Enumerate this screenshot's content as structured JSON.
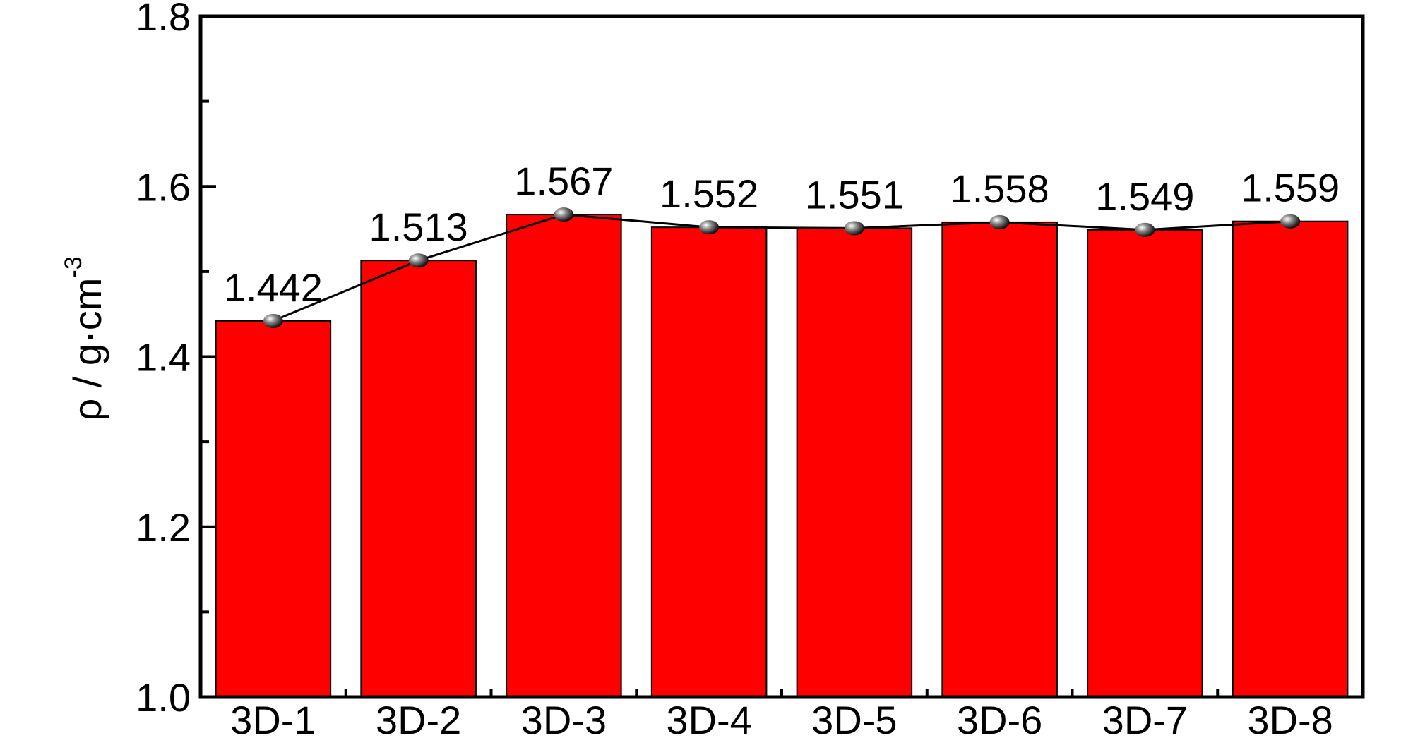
{
  "chart_data": {
    "type": "bar",
    "ylabel": "ρ / g·cm",
    "ylabel_superscript": "-3",
    "categories": [
      "3D-1",
      "3D-2",
      "3D-3",
      "3D-4",
      "3D-5",
      "3D-6",
      "3D-7",
      "3D-8"
    ],
    "values": [
      1.442,
      1.513,
      1.567,
      1.552,
      1.551,
      1.558,
      1.549,
      1.559
    ],
    "color": "#ff0000",
    "line_color": "#000000",
    "line": true,
    "ylim": [
      1.0,
      1.8
    ],
    "yticks": [
      {
        "value": 1.0,
        "label": "1.0"
      },
      1.2,
      1.4,
      1.6,
      1.8
    ],
    "minor_ticks": true,
    "data_labels": true
  }
}
